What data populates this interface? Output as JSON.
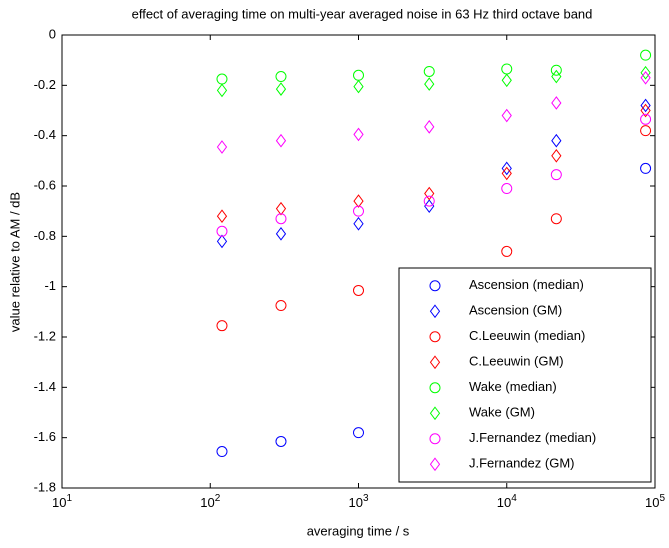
{
  "chart_data": {
    "type": "scatter",
    "title": "effect of averaging time on multi-year averaged noise in 63 Hz third octave band",
    "x_label": "averaging time / s",
    "y_label": "value relative to AM / dB",
    "x_scale": "log",
    "xlim": [
      10,
      100000
    ],
    "xticks": [
      {
        "value": 10,
        "label": "10^1"
      },
      {
        "value": 100,
        "label": "10^2"
      },
      {
        "value": 1000,
        "label": "10^3"
      },
      {
        "value": 10000,
        "label": "10^4"
      },
      {
        "value": 100000,
        "label": "10^5"
      }
    ],
    "ylim": [
      -1.8,
      0
    ],
    "yticks": [
      -1.8,
      -1.6,
      -1.4,
      -1.2,
      -1,
      -0.8,
      -0.6,
      -0.4,
      -0.2,
      0
    ],
    "legend_position": "lower right",
    "x": [
      120,
      300,
      1000,
      3000,
      10000,
      21600,
      86400
    ],
    "series": [
      {
        "name": "Ascension (median)",
        "color": "#0000ff",
        "marker": "circle",
        "values": [
          -1.655,
          -1.615,
          -1.58,
          null,
          null,
          -0.97,
          -0.53
        ]
      },
      {
        "name": "Ascension (GM)",
        "color": "#0000ff",
        "marker": "diamond",
        "values": [
          -0.82,
          -0.79,
          -0.75,
          -0.68,
          -0.53,
          -0.42,
          -0.28
        ]
      },
      {
        "name": "C.Leeuwin (median)",
        "color": "#ff0000",
        "marker": "circle",
        "values": [
          -1.155,
          -1.075,
          -1.015,
          -0.97,
          -0.86,
          -0.73,
          -0.38
        ]
      },
      {
        "name": "C.Leeuwin (GM)",
        "color": "#ff0000",
        "marker": "diamond",
        "values": [
          -0.72,
          -0.69,
          -0.66,
          -0.63,
          -0.55,
          -0.48,
          -0.3
        ]
      },
      {
        "name": "Wake (median)",
        "color": "#00ff00",
        "marker": "circle",
        "values": [
          -0.175,
          -0.165,
          -0.16,
          -0.145,
          -0.135,
          -0.14,
          -0.08
        ]
      },
      {
        "name": "Wake (GM)",
        "color": "#00ff00",
        "marker": "diamond",
        "values": [
          -0.22,
          -0.215,
          -0.205,
          -0.195,
          -0.18,
          -0.165,
          -0.15
        ]
      },
      {
        "name": "J.Fernandez (median)",
        "color": "#ff00ff",
        "marker": "circle",
        "values": [
          -0.78,
          -0.73,
          -0.7,
          -0.66,
          -0.61,
          -0.555,
          -0.335
        ]
      },
      {
        "name": "J.Fernandez (GM)",
        "color": "#ff00ff",
        "marker": "diamond",
        "values": [
          -0.445,
          -0.42,
          -0.395,
          -0.365,
          -0.32,
          -0.27,
          -0.17
        ]
      }
    ]
  }
}
